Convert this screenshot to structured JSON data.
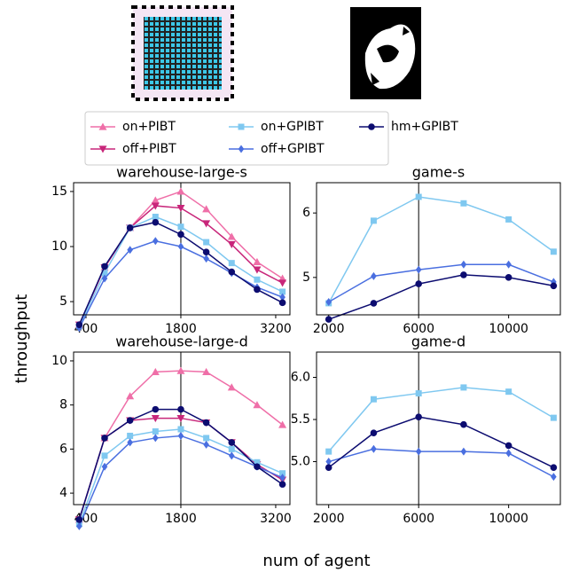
{
  "figure": {
    "ylabel": "throughput",
    "xlabel": "num of agent"
  },
  "chart_data": [
    {
      "type": "line",
      "title": "warehouse-large-s",
      "x": [
        300,
        675,
        1050,
        1425,
        1800,
        2175,
        2550,
        2925,
        3300
      ],
      "xlim": [
        217,
        3410
      ],
      "xticks": [
        400,
        1800,
        3200
      ],
      "ylim": [
        3.8,
        15.8
      ],
      "yticks": [
        5,
        10,
        15
      ],
      "vline": 1800,
      "series": [
        {
          "name": "on+PIBT",
          "color": "#ef6fa8",
          "marker": "triangle-up",
          "values": [
            2.9,
            8.1,
            11.7,
            14.2,
            15.0,
            13.4,
            10.9,
            8.6,
            7.1
          ]
        },
        {
          "name": "off+PIBT",
          "color": "#c8267a",
          "marker": "triangle-down",
          "values": [
            2.9,
            8.1,
            11.7,
            13.7,
            13.5,
            12.1,
            10.2,
            7.9,
            6.7
          ]
        },
        {
          "name": "on+GPIBT",
          "color": "#7fc8f0",
          "marker": "square",
          "values": [
            2.8,
            7.6,
            11.7,
            12.7,
            11.8,
            10.4,
            8.5,
            7.0,
            5.9
          ]
        },
        {
          "name": "off+GPIBT",
          "color": "#4a6fe0",
          "marker": "diamond",
          "values": [
            2.6,
            7.1,
            9.7,
            10.5,
            10.0,
            8.9,
            7.6,
            6.3,
            5.4
          ]
        },
        {
          "name": "hm+GPIBT",
          "color": "#0c0c70",
          "marker": "circle",
          "values": [
            2.9,
            8.2,
            11.7,
            12.2,
            11.1,
            9.5,
            7.7,
            6.1,
            4.9
          ]
        }
      ]
    },
    {
      "type": "line",
      "title": "game-s",
      "x": [
        2000,
        4000,
        6000,
        8000,
        10000,
        12000
      ],
      "xlim": [
        1460,
        12300
      ],
      "xticks": [
        2000,
        6000,
        10000
      ],
      "ylim": [
        4.42,
        6.47
      ],
      "yticks": [
        5,
        6
      ],
      "vline": 6000,
      "series": [
        {
          "name": "on+GPIBT",
          "color": "#7fc8f0",
          "marker": "square",
          "values": [
            4.6,
            5.88,
            6.25,
            6.15,
            5.9,
            5.4
          ]
        },
        {
          "name": "off+GPIBT",
          "color": "#4a6fe0",
          "marker": "diamond",
          "values": [
            4.62,
            5.02,
            5.12,
            5.2,
            5.2,
            4.93
          ]
        },
        {
          "name": "hm+GPIBT",
          "color": "#0c0c70",
          "marker": "circle",
          "values": [
            4.35,
            4.6,
            4.9,
            5.04,
            5.0,
            4.87
          ]
        }
      ]
    },
    {
      "type": "line",
      "title": "warehouse-large-d",
      "x": [
        300,
        675,
        1050,
        1425,
        1800,
        2175,
        2550,
        2925,
        3300
      ],
      "xlim": [
        217,
        3410
      ],
      "xticks": [
        400,
        1800,
        3200
      ],
      "ylim": [
        3.48,
        10.4
      ],
      "yticks": [
        4,
        6,
        8,
        10
      ],
      "vline": 1800,
      "series": [
        {
          "name": "on+PIBT",
          "color": "#ef6fa8",
          "marker": "triangle-up",
          "values": [
            2.8,
            6.5,
            8.4,
            9.5,
            9.55,
            9.5,
            8.8,
            8.0,
            7.1
          ]
        },
        {
          "name": "off+PIBT",
          "color": "#c8267a",
          "marker": "triangle-down",
          "values": [
            2.8,
            6.5,
            7.3,
            7.4,
            7.4,
            7.2,
            6.3,
            5.3,
            4.6
          ]
        },
        {
          "name": "on+GPIBT",
          "color": "#7fc8f0",
          "marker": "square",
          "values": [
            2.6,
            5.7,
            6.6,
            6.8,
            6.9,
            6.5,
            6.0,
            5.4,
            4.9
          ]
        },
        {
          "name": "off+GPIBT",
          "color": "#4a6fe0",
          "marker": "diamond",
          "values": [
            2.5,
            5.2,
            6.3,
            6.5,
            6.6,
            6.2,
            5.7,
            5.2,
            4.7
          ]
        },
        {
          "name": "hm+GPIBT",
          "color": "#0c0c70",
          "marker": "circle",
          "values": [
            2.8,
            6.5,
            7.3,
            7.8,
            7.8,
            7.2,
            6.3,
            5.2,
            4.4
          ]
        }
      ]
    },
    {
      "type": "line",
      "title": "game-d",
      "x": [
        2000,
        4000,
        6000,
        8000,
        10000,
        12000
      ],
      "xlim": [
        1460,
        12300
      ],
      "xticks": [
        2000,
        6000,
        10000
      ],
      "ylim": [
        4.49,
        6.3
      ],
      "yticks": [
        {
          "value": 5.0,
          "label": "5.0"
        },
        {
          "value": 5.5,
          "label": "5.5"
        },
        {
          "value": 6.0,
          "label": "6.0"
        }
      ],
      "vline": 6000,
      "series": [
        {
          "name": "on+GPIBT",
          "color": "#7fc8f0",
          "marker": "square",
          "values": [
            5.12,
            5.74,
            5.81,
            5.88,
            5.83,
            5.52
          ]
        },
        {
          "name": "off+GPIBT",
          "color": "#4a6fe0",
          "marker": "diamond",
          "values": [
            5.0,
            5.15,
            5.12,
            5.12,
            5.1,
            4.82
          ]
        },
        {
          "name": "hm+GPIBT",
          "color": "#0c0c70",
          "marker": "circle",
          "values": [
            4.93,
            5.34,
            5.53,
            5.44,
            5.19,
            4.93
          ]
        }
      ]
    }
  ]
}
